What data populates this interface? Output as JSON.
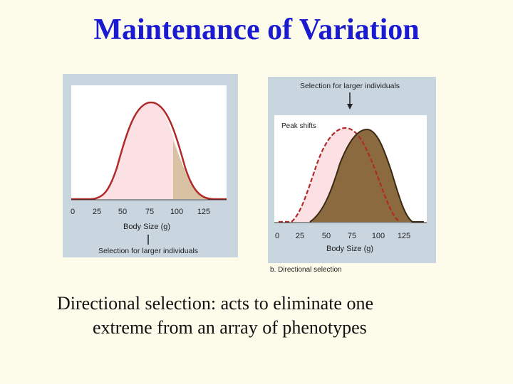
{
  "slide": {
    "title": "Maintenance of Variation",
    "caption_line1": "Directional selection:  acts to eliminate one",
    "caption_line2": "extreme from an array of phenotypes"
  },
  "left_figure": {
    "x_axis_label": "Body Size (g)",
    "x_ticks": [
      "0",
      "25",
      "50",
      "75",
      "100",
      "125"
    ],
    "selection_label": "Selection for larger individuals"
  },
  "right_figure": {
    "selection_label": "Selection for larger individuals",
    "inner_label": "Peak shifts",
    "x_axis_label": "Body Size (g)",
    "x_ticks": [
      "0",
      "25",
      "50",
      "75",
      "100",
      "125"
    ],
    "panel_caption": "b. Directional selection"
  },
  "colors": {
    "title": "#1a1ad0",
    "panel_bg": "#c9d6e0",
    "plot_bg": "#ffffff",
    "original_fill": "#fbe1e4",
    "curve_red": "#b02a2a",
    "selected_fill": "#d9c2a4",
    "shifted_fill": "#8a6a3e",
    "shifted_line": "#3a2a14"
  }
}
